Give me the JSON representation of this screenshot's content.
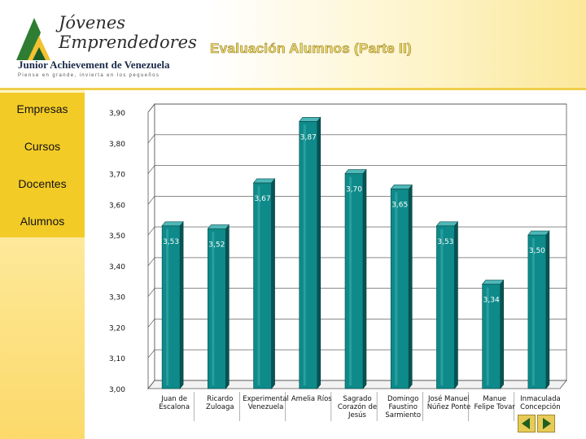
{
  "logo": {
    "line1": "Jóvenes",
    "line2": "Emprendedores",
    "org": "Junior Achievement de Venezuela",
    "tagline": "Piense en grande, invierta en los pequeños"
  },
  "slide": {
    "title": "Evaluación Alumnos (Parte II)"
  },
  "nav": {
    "items": [
      "Empresas",
      "Cursos",
      "Docentes",
      "Alumnos"
    ]
  },
  "colors": {
    "bar": "#0e8a8a",
    "nav_bg": "#f3cb27",
    "title": "#f4e070"
  },
  "chart_data": {
    "type": "bar",
    "categories": [
      [
        "Juan de",
        "Escalona"
      ],
      [
        "Ricardo",
        "Zuloaga"
      ],
      [
        "Experimental",
        "Venezuela"
      ],
      [
        "Amelia Ríos"
      ],
      [
        "Sagrado",
        "Corazón de",
        "Jesús"
      ],
      [
        "Domingo",
        "Faustino",
        "Sarmiento"
      ],
      [
        "José Manuel",
        "Núñez Ponte"
      ],
      [
        "Manue",
        "Felipe Tovar"
      ],
      [
        "Inmaculada",
        "Concepción"
      ]
    ],
    "values": [
      3.53,
      3.52,
      3.67,
      3.87,
      3.7,
      3.65,
      3.53,
      3.34,
      3.5
    ],
    "value_labels": [
      "3,53",
      "3,52",
      "3,67",
      "3,87",
      "3,70",
      "3,65",
      "3,53",
      "3,34",
      "3,50"
    ],
    "ylim": [
      3.0,
      3.9
    ],
    "yticks": [
      "3,00",
      "3,10",
      "3,20",
      "3,30",
      "3,40",
      "3,50",
      "3,60",
      "3,70",
      "3,80",
      "3,90"
    ],
    "grid": true,
    "bar_style": "3d-cylinder"
  }
}
